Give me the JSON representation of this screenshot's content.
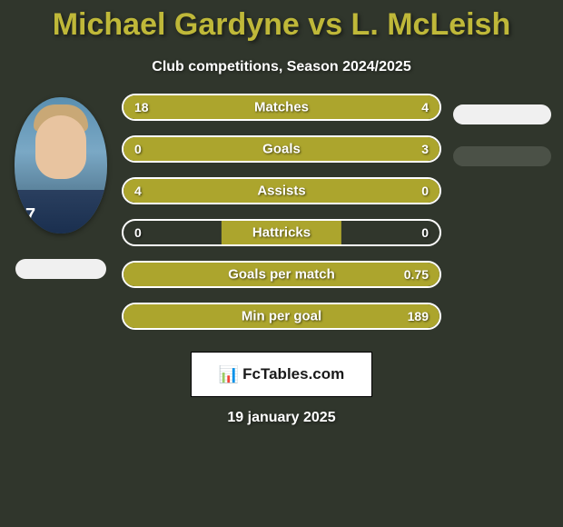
{
  "title": "Michael Gardyne vs L. McLeish",
  "subtitle": "Club competitions, Season 2024/2025",
  "colors": {
    "background": "#30362c",
    "accent": "#aca52d",
    "title": "#bfb839",
    "text": "#ffffff",
    "pill_light": "#f0f0f0",
    "pill_dark": "#4b5147"
  },
  "player_left": {
    "name": "Michael Gardyne",
    "jersey_number": "7"
  },
  "player_right": {
    "name": "L. McLeish"
  },
  "stats": [
    {
      "label": "Matches",
      "left_value": "18",
      "right_value": "4",
      "left_pct": 82,
      "right_pct": 18,
      "fill_style": "full"
    },
    {
      "label": "Goals",
      "left_value": "0",
      "right_value": "3",
      "left_pct": 0,
      "right_pct": 100,
      "fill_style": "right"
    },
    {
      "label": "Assists",
      "left_value": "4",
      "right_value": "0",
      "left_pct": 100,
      "right_pct": 0,
      "fill_style": "left"
    },
    {
      "label": "Hattricks",
      "left_value": "0",
      "right_value": "0",
      "left_pct": 0,
      "right_pct": 0,
      "fill_style": "center"
    },
    {
      "label": "Goals per match",
      "left_value": "",
      "right_value": "0.75",
      "left_pct": 0,
      "right_pct": 100,
      "fill_style": "right"
    },
    {
      "label": "Min per goal",
      "left_value": "",
      "right_value": "189",
      "left_pct": 0,
      "right_pct": 100,
      "fill_style": "right"
    }
  ],
  "right_pills": [
    {
      "style": "white"
    },
    {
      "style": "dark"
    }
  ],
  "footer": {
    "brand": "FcTables.com"
  },
  "date": "19 january 2025"
}
